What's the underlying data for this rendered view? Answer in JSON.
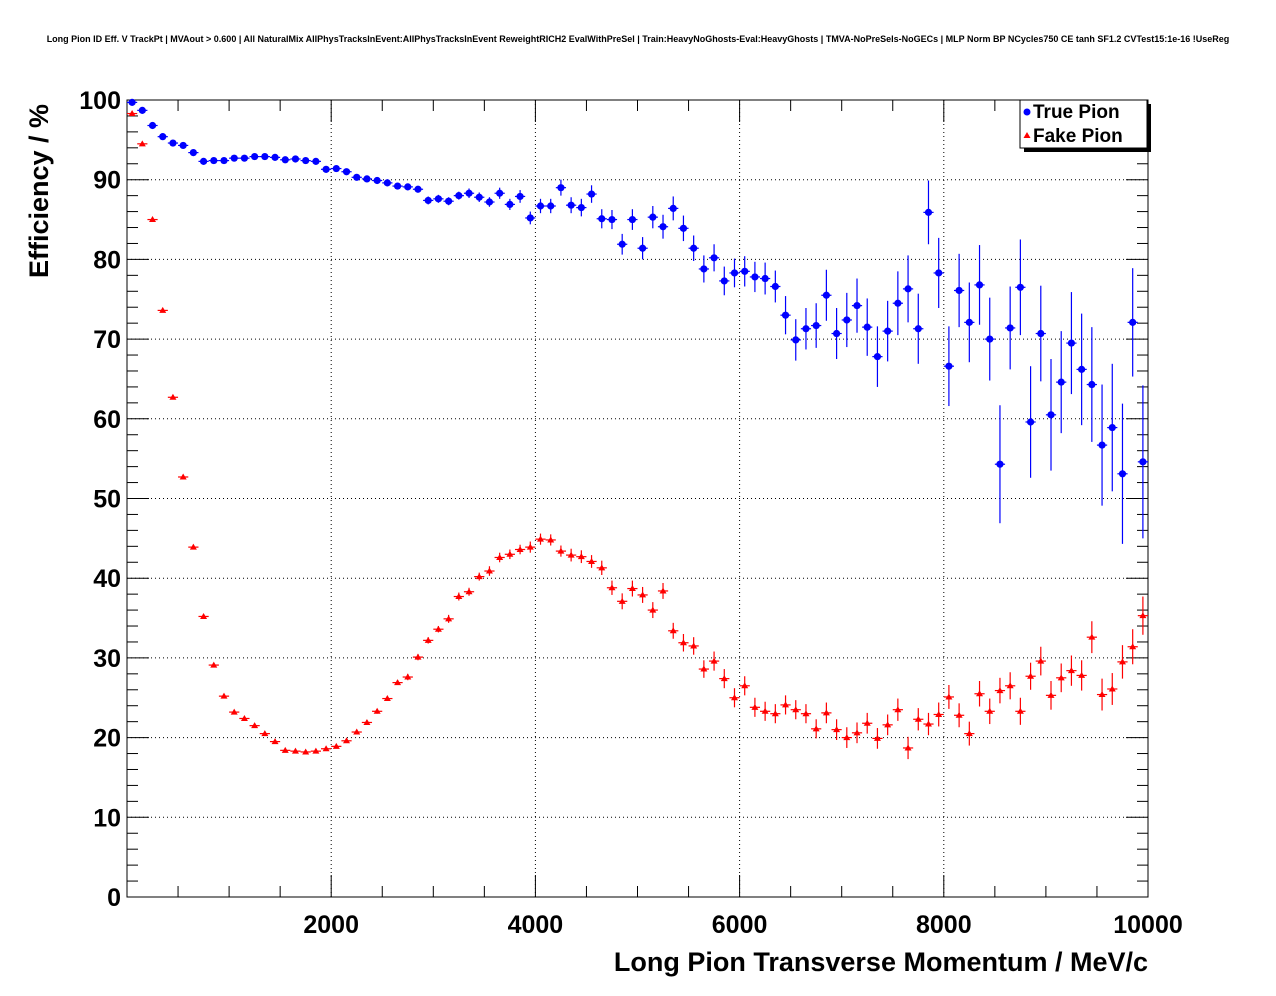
{
  "chart_data": {
    "type": "scatter",
    "title": "Long Pion ID Eff. V TrackPt | MVAout > 0.600 | All NaturalMix AllPhysTracksInEvent:AllPhysTracksInEvent ReweightRICH2 EvalWithPreSel | Train:HeavyNoGhosts-Eval:HeavyGhosts | TMVA-NoPreSels-NoGECs | MLP Norm BP NCycles750 CE tanh SF1.2 CVTest15:1e-16 !UseReg",
    "xlabel": "Long Pion Transverse Momentum / MeV/c",
    "ylabel": "Efficiency / %",
    "xlim": [
      0,
      10000
    ],
    "ylim": [
      0,
      100
    ],
    "x_ticks": [
      2000,
      4000,
      6000,
      8000,
      10000
    ],
    "y_ticks": [
      0,
      10,
      20,
      30,
      40,
      50,
      60,
      70,
      80,
      90,
      100
    ],
    "grid": true,
    "legend_position": "top-right",
    "series": [
      {
        "name": "True Pion",
        "marker": "circle",
        "color": "#0000ff",
        "x": [
          50,
          150,
          250,
          350,
          450,
          550,
          650,
          750,
          850,
          950,
          1050,
          1150,
          1250,
          1350,
          1450,
          1550,
          1650,
          1750,
          1850,
          1950,
          2050,
          2150,
          2250,
          2350,
          2450,
          2550,
          2650,
          2750,
          2850,
          2950,
          3050,
          3150,
          3250,
          3350,
          3450,
          3550,
          3650,
          3750,
          3850,
          3950,
          4050,
          4150,
          4250,
          4350,
          4450,
          4550,
          4650,
          4750,
          4850,
          4950,
          5050,
          5150,
          5250,
          5350,
          5450,
          5550,
          5650,
          5750,
          5850,
          5950,
          6050,
          6150,
          6250,
          6350,
          6450,
          6550,
          6650,
          6750,
          6850,
          6950,
          7050,
          7150,
          7250,
          7350,
          7450,
          7550,
          7650,
          7750,
          7850,
          7950,
          8050,
          8150,
          8250,
          8350,
          8450,
          8550,
          8650,
          8750,
          8850,
          8950,
          9050,
          9150,
          9250,
          9350,
          9450,
          9550,
          9650,
          9750,
          9850,
          9950
        ],
        "y": [
          99.7,
          98.7,
          96.8,
          95.4,
          94.6,
          94.3,
          93.4,
          92.3,
          92.4,
          92.4,
          92.7,
          92.7,
          92.9,
          92.9,
          92.8,
          92.5,
          92.6,
          92.4,
          92.3,
          91.3,
          91.4,
          91.0,
          90.3,
          90.1,
          89.9,
          89.6,
          89.2,
          89.1,
          88.8,
          87.4,
          87.6,
          87.3,
          88.0,
          88.3,
          87.8,
          87.2,
          88.3,
          86.9,
          87.9,
          85.2,
          86.7,
          86.7,
          89.0,
          86.8,
          86.5,
          88.2,
          85.1,
          85.0,
          81.9,
          85.0,
          81.4,
          85.3,
          84.1,
          86.4,
          83.9,
          81.4,
          78.8,
          80.2,
          77.3,
          78.3,
          78.5,
          77.8,
          77.6,
          76.6,
          73.0,
          69.9,
          71.3,
          71.7,
          75.5,
          70.7,
          72.4,
          74.2,
          71.5,
          67.8,
          71.0,
          74.5,
          76.3,
          71.3,
          85.9,
          78.3,
          66.6,
          76.1,
          72.1,
          76.8,
          70.0,
          54.3,
          71.4,
          76.5,
          59.6,
          70.7,
          60.5,
          64.6,
          69.5,
          66.2,
          64.3,
          56.7,
          58.9,
          53.1,
          72.1,
          54.6
        ],
        "yerr": [
          0.2,
          0.2,
          0.3,
          0.3,
          0.3,
          0.3,
          0.3,
          0.3,
          0.3,
          0.3,
          0.3,
          0.3,
          0.3,
          0.3,
          0.3,
          0.3,
          0.3,
          0.3,
          0.3,
          0.3,
          0.3,
          0.3,
          0.3,
          0.3,
          0.4,
          0.4,
          0.4,
          0.4,
          0.4,
          0.5,
          0.5,
          0.5,
          0.5,
          0.6,
          0.6,
          0.6,
          0.7,
          0.7,
          0.8,
          0.8,
          0.9,
          0.9,
          1.0,
          1.0,
          1.1,
          1.1,
          1.2,
          1.2,
          1.3,
          1.3,
          1.4,
          1.4,
          1.5,
          1.5,
          1.6,
          1.6,
          1.7,
          1.7,
          1.8,
          1.8,
          1.9,
          1.9,
          2.0,
          2.0,
          2.4,
          2.6,
          2.6,
          2.8,
          3.2,
          3.2,
          3.4,
          3.4,
          3.6,
          3.8,
          3.8,
          4.0,
          4.2,
          4.4,
          4.0,
          4.4,
          5.0,
          4.6,
          5.0,
          5.0,
          5.2,
          7.4,
          5.2,
          6.0,
          7.0,
          6.0,
          7.0,
          6.4,
          6.4,
          7.0,
          7.2,
          7.6,
          8.0,
          8.8,
          6.8,
          9.6
        ]
      },
      {
        "name": "Fake Pion",
        "marker": "triangle",
        "color": "#ff0000",
        "x": [
          50,
          150,
          250,
          350,
          450,
          550,
          650,
          750,
          850,
          950,
          1050,
          1150,
          1250,
          1350,
          1450,
          1550,
          1650,
          1750,
          1850,
          1950,
          2050,
          2150,
          2250,
          2350,
          2450,
          2550,
          2650,
          2750,
          2850,
          2950,
          3050,
          3150,
          3250,
          3350,
          3450,
          3550,
          3650,
          3750,
          3850,
          3950,
          4050,
          4150,
          4250,
          4350,
          4450,
          4550,
          4650,
          4750,
          4850,
          4950,
          5050,
          5150,
          5250,
          5350,
          5450,
          5550,
          5650,
          5750,
          5850,
          5950,
          6050,
          6150,
          6250,
          6350,
          6450,
          6550,
          6650,
          6750,
          6850,
          6950,
          7050,
          7150,
          7250,
          7350,
          7450,
          7550,
          7650,
          7750,
          7850,
          7950,
          8050,
          8150,
          8250,
          8350,
          8450,
          8550,
          8650,
          8750,
          8850,
          8950,
          9050,
          9150,
          9250,
          9350,
          9450,
          9550,
          9650,
          9750,
          9850,
          9950
        ],
        "y": [
          98.3,
          94.5,
          85.0,
          73.6,
          62.7,
          52.7,
          43.9,
          35.2,
          29.1,
          25.2,
          23.2,
          22.4,
          21.5,
          20.5,
          19.5,
          18.4,
          18.3,
          18.2,
          18.3,
          18.6,
          18.9,
          19.6,
          20.7,
          21.9,
          23.3,
          24.9,
          26.9,
          27.6,
          30.1,
          32.2,
          33.6,
          34.9,
          37.7,
          38.3,
          40.2,
          40.9,
          42.6,
          43.0,
          43.6,
          43.9,
          44.9,
          44.8,
          43.4,
          42.9,
          42.7,
          42.1,
          41.3,
          38.8,
          37.1,
          38.7,
          37.9,
          36.0,
          38.4,
          33.4,
          31.9,
          31.5,
          28.6,
          29.6,
          27.4,
          25.0,
          26.5,
          23.8,
          23.3,
          23.0,
          24.1,
          23.5,
          23.0,
          21.1,
          23.1,
          21.0,
          20.0,
          20.6,
          21.8,
          19.9,
          21.6,
          23.5,
          18.7,
          22.3,
          21.7,
          22.9,
          25.1,
          22.8,
          20.5,
          25.5,
          23.3,
          25.9,
          26.5,
          23.3,
          27.7,
          29.6,
          25.3,
          27.5,
          28.4,
          27.8,
          32.6,
          25.4,
          26.1,
          29.5,
          31.4,
          35.3
        ],
        "yerr": [
          0.2,
          0.2,
          0.2,
          0.2,
          0.2,
          0.2,
          0.2,
          0.2,
          0.2,
          0.2,
          0.2,
          0.2,
          0.2,
          0.2,
          0.2,
          0.2,
          0.2,
          0.2,
          0.2,
          0.2,
          0.2,
          0.2,
          0.3,
          0.3,
          0.3,
          0.3,
          0.3,
          0.4,
          0.4,
          0.4,
          0.4,
          0.5,
          0.5,
          0.5,
          0.5,
          0.6,
          0.6,
          0.6,
          0.6,
          0.7,
          0.7,
          0.7,
          0.7,
          0.8,
          0.8,
          0.8,
          0.9,
          0.9,
          1.0,
          1.0,
          1.0,
          1.0,
          1.0,
          1.0,
          1.1,
          1.1,
          1.1,
          1.2,
          1.2,
          1.2,
          1.2,
          1.2,
          1.2,
          1.2,
          1.2,
          1.2,
          1.2,
          1.2,
          1.3,
          1.3,
          1.3,
          1.3,
          1.3,
          1.3,
          1.3,
          1.4,
          1.4,
          1.4,
          1.4,
          1.5,
          1.5,
          1.5,
          1.5,
          1.6,
          1.6,
          1.6,
          1.7,
          1.7,
          1.7,
          1.8,
          1.8,
          1.8,
          1.9,
          1.9,
          2.0,
          2.0,
          2.0,
          2.1,
          2.2,
          2.4
        ]
      }
    ]
  }
}
